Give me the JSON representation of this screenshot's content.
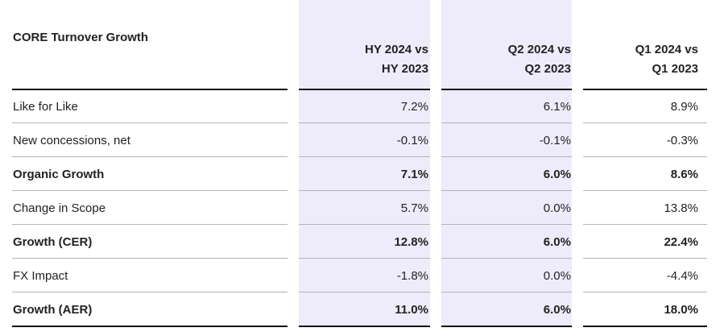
{
  "table": {
    "title": "CORE Turnover Growth",
    "columns": [
      [
        "HY 2024 vs",
        "HY 2023"
      ],
      [
        "Q2 2024 vs",
        "Q2 2023"
      ],
      [
        "Q1 2024 vs",
        "Q1 2023"
      ]
    ],
    "rows": [
      {
        "label": "Like for Like",
        "values": [
          "7.2%",
          "6.1%",
          "8.9%"
        ],
        "bold": false
      },
      {
        "label": "New concessions, net",
        "values": [
          "-0.1%",
          "-0.1%",
          "-0.3%"
        ],
        "bold": false
      },
      {
        "label": "Organic Growth",
        "values": [
          "7.1%",
          "6.0%",
          "8.6%"
        ],
        "bold": true
      },
      {
        "label": "Change in Scope",
        "values": [
          "5.7%",
          "0.0%",
          "13.8%"
        ],
        "bold": false
      },
      {
        "label": "Growth (CER)",
        "values": [
          "12.8%",
          "6.0%",
          "22.4%"
        ],
        "bold": true
      },
      {
        "label": "FX Impact",
        "values": [
          "-1.8%",
          "0.0%",
          "-4.4%"
        ],
        "bold": false
      },
      {
        "label": "Growth (AER)",
        "values": [
          "11.0%",
          "6.0%",
          "18.0%"
        ],
        "bold": true
      }
    ]
  },
  "colors": {
    "highlight": "#eeecfb",
    "rule_strong": "#111111",
    "rule_light": "#b3b3b3"
  }
}
